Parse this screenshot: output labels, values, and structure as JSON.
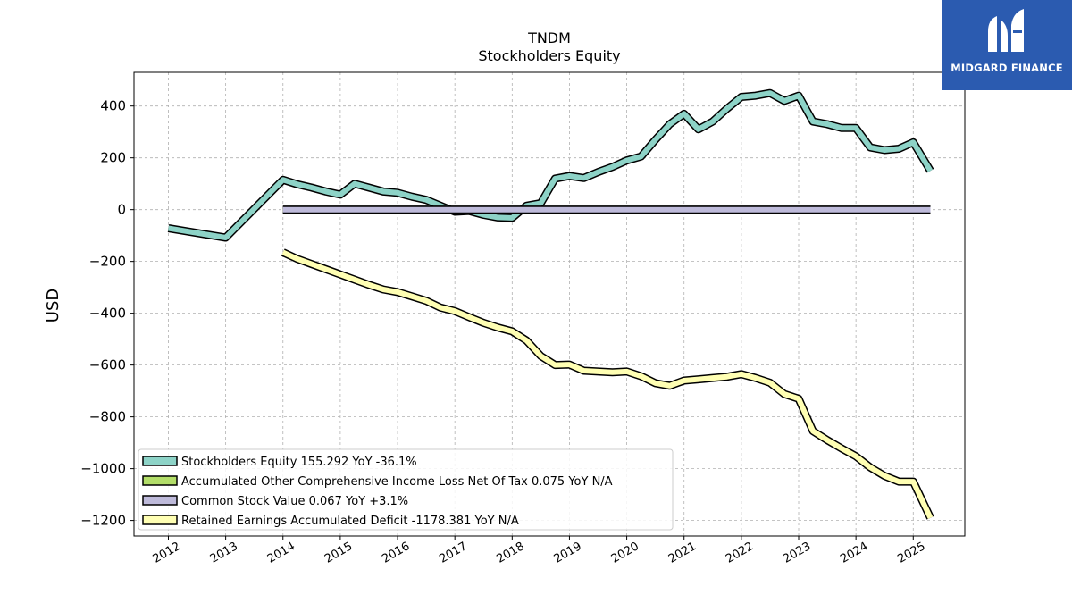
{
  "chart_data": {
    "type": "line",
    "title": "TNDM",
    "subtitle": "Stockholders  Equity",
    "ylabel": "USD",
    "xlabel": "",
    "xlim": [
      2011.4,
      2025.9
    ],
    "ylim": [
      -1260,
      530
    ],
    "x_ticks": [
      "2012",
      "2013",
      "2014",
      "2015",
      "2016",
      "2017",
      "2018",
      "2019",
      "2020",
      "2021",
      "2022",
      "2023",
      "2024",
      "2025"
    ],
    "y_ticks": [
      400,
      200,
      0,
      -200,
      -400,
      -600,
      -800,
      -1000,
      -1200
    ],
    "y_tick_labels": [
      "400",
      "200",
      "0",
      "−200",
      "−400",
      "−600",
      "−800",
      "−1000",
      "−1200"
    ],
    "grid": true,
    "legend_position": "lower-left",
    "series": [
      {
        "name": "Stockholders Equity  155.292 YoY -36.1%",
        "color": "#8dd3c7",
        "points": [
          [
            2012.0,
            -72
          ],
          [
            2013.0,
            -108
          ],
          [
            2014.0,
            115
          ],
          [
            2014.25,
            98
          ],
          [
            2014.5,
            85
          ],
          [
            2014.75,
            70
          ],
          [
            2015.0,
            58
          ],
          [
            2015.25,
            100
          ],
          [
            2015.5,
            85
          ],
          [
            2015.75,
            70
          ],
          [
            2016.0,
            65
          ],
          [
            2016.25,
            50
          ],
          [
            2016.5,
            38
          ],
          [
            2016.75,
            15
          ],
          [
            2017.0,
            -8
          ],
          [
            2017.25,
            -5
          ],
          [
            2017.5,
            -20
          ],
          [
            2017.75,
            -30
          ],
          [
            2018.0,
            -32
          ],
          [
            2018.25,
            15
          ],
          [
            2018.5,
            25
          ],
          [
            2018.75,
            120
          ],
          [
            2019.0,
            130
          ],
          [
            2019.25,
            122
          ],
          [
            2019.5,
            145
          ],
          [
            2019.75,
            165
          ],
          [
            2020.0,
            190
          ],
          [
            2020.25,
            205
          ],
          [
            2020.5,
            270
          ],
          [
            2020.75,
            330
          ],
          [
            2021.0,
            370
          ],
          [
            2021.25,
            310
          ],
          [
            2021.5,
            340
          ],
          [
            2021.75,
            390
          ],
          [
            2022.0,
            435
          ],
          [
            2022.25,
            440
          ],
          [
            2022.5,
            450
          ],
          [
            2022.75,
            420
          ],
          [
            2023.0,
            440
          ],
          [
            2023.25,
            340
          ],
          [
            2023.5,
            330
          ],
          [
            2023.75,
            315
          ],
          [
            2024.0,
            315
          ],
          [
            2024.25,
            240
          ],
          [
            2024.5,
            230
          ],
          [
            2024.75,
            235
          ],
          [
            2025.0,
            260
          ],
          [
            2025.3,
            150
          ]
        ]
      },
      {
        "name": "Accumulated Other Comprehensive Income Loss Net Of Tax  0.075 YoY N/A",
        "color": "#b3de69",
        "points": [
          [
            2014.0,
            0
          ],
          [
            2025.3,
            0
          ]
        ]
      },
      {
        "name": "Common Stock Value  0.067 YoY +3.1%",
        "color": "#bebada",
        "points": [
          [
            2014.0,
            0
          ],
          [
            2025.3,
            0
          ]
        ]
      },
      {
        "name": "Retained Earnings Accumulated Deficit  -1178.381 YoY N/A",
        "color": "#ffffb3",
        "points": [
          [
            2014.0,
            -165
          ],
          [
            2014.25,
            -190
          ],
          [
            2014.5,
            -210
          ],
          [
            2014.75,
            -230
          ],
          [
            2015.0,
            -250
          ],
          [
            2015.25,
            -270
          ],
          [
            2015.5,
            -290
          ],
          [
            2015.75,
            -308
          ],
          [
            2016.0,
            -318
          ],
          [
            2016.25,
            -335
          ],
          [
            2016.5,
            -352
          ],
          [
            2016.75,
            -378
          ],
          [
            2017.0,
            -392
          ],
          [
            2017.25,
            -415
          ],
          [
            2017.5,
            -437
          ],
          [
            2017.75,
            -455
          ],
          [
            2018.0,
            -470
          ],
          [
            2018.25,
            -505
          ],
          [
            2018.5,
            -565
          ],
          [
            2018.75,
            -600
          ],
          [
            2019.0,
            -598
          ],
          [
            2019.25,
            -622
          ],
          [
            2019.5,
            -625
          ],
          [
            2019.75,
            -628
          ],
          [
            2020.0,
            -625
          ],
          [
            2020.25,
            -643
          ],
          [
            2020.5,
            -670
          ],
          [
            2020.75,
            -680
          ],
          [
            2021.0,
            -660
          ],
          [
            2021.25,
            -655
          ],
          [
            2021.5,
            -650
          ],
          [
            2021.75,
            -645
          ],
          [
            2022.0,
            -635
          ],
          [
            2022.25,
            -650
          ],
          [
            2022.5,
            -668
          ],
          [
            2022.75,
            -712
          ],
          [
            2023.0,
            -730
          ],
          [
            2023.25,
            -855
          ],
          [
            2023.5,
            -890
          ],
          [
            2023.75,
            -922
          ],
          [
            2024.0,
            -952
          ],
          [
            2024.25,
            -995
          ],
          [
            2024.5,
            -1028
          ],
          [
            2024.75,
            -1050
          ],
          [
            2025.0,
            -1050
          ],
          [
            2025.3,
            -1190
          ]
        ]
      }
    ]
  },
  "logo": {
    "text": "MIDGARD FINANCE",
    "color": "#2b5bb0"
  }
}
